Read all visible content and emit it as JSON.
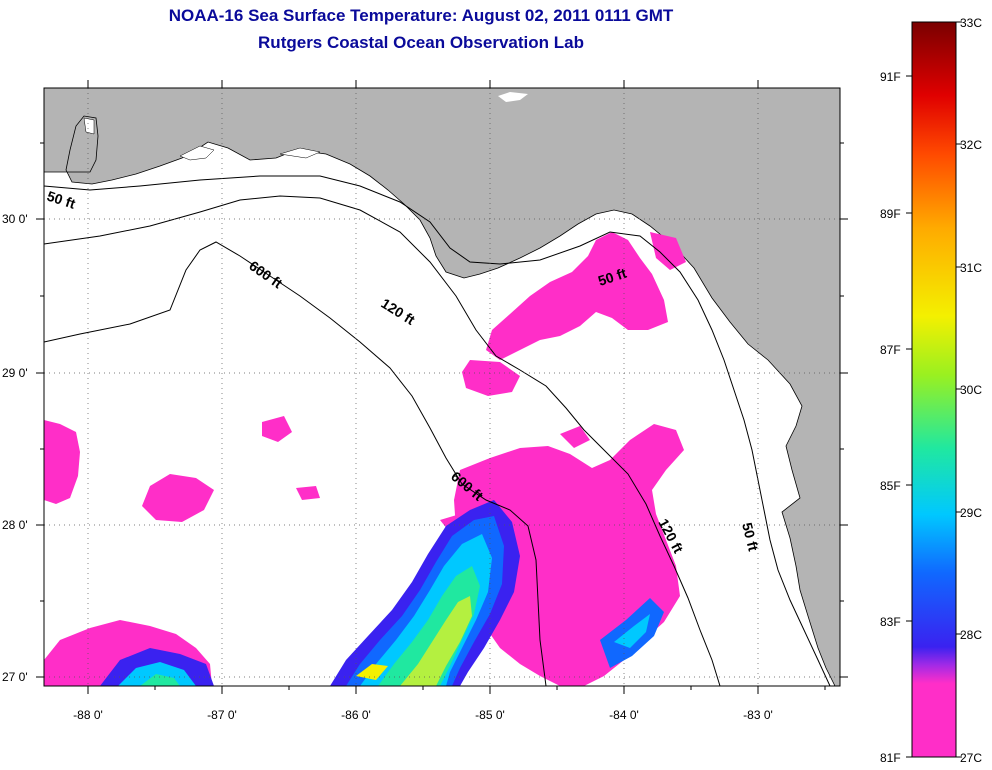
{
  "title": {
    "line1": "NOAA-16 Sea Surface Temperature:  August 02, 2011 0111 GMT",
    "line2": "Rutgers Coastal Ocean Observation Lab"
  },
  "map": {
    "land_color": "#b4b4b4",
    "water_color": "#ffffff",
    "lon_labels": [
      "-88 0'",
      "-87 0'",
      "-86 0'",
      "-85 0'",
      "-84 0'",
      "-83 0'"
    ],
    "lat_labels": [
      "30 0'",
      "29 0'",
      "28 0'",
      "27 0'"
    ],
    "contour_labels": [
      "50 ft",
      "600 ft",
      "120 ft",
      "50 ft",
      "600 ft",
      "120 ft",
      "50 ft"
    ],
    "grid": true
  },
  "colorbar": {
    "celsius_labels": [
      "33C",
      "32C",
      "31C",
      "30C",
      "29C",
      "28C",
      "27C"
    ],
    "fahrenheit_labels": [
      "91F",
      "89F",
      "87F",
      "85F",
      "83F",
      "81F"
    ],
    "colors": [
      "#ff2ec8",
      "#b62ae0",
      "#3a22f0",
      "#1068ff",
      "#00c8ff",
      "#20e8a0",
      "#9af020",
      "#f4f000",
      "#ffaa00",
      "#ff4a00",
      "#e00000",
      "#7a0000"
    ]
  }
}
